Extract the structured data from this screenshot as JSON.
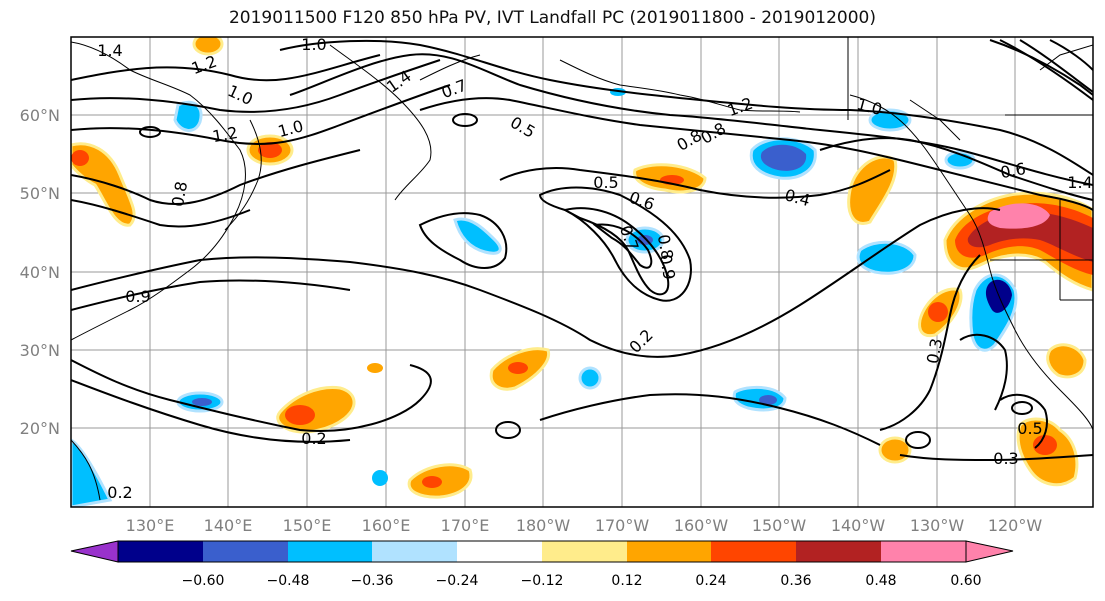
{
  "title": "2019011500 F120 850 hPa PV, IVT Landfall PC (2019011800 - 2019012000)",
  "lat_labels": [
    "60°N",
    "50°N",
    "40°N",
    "30°N",
    "20°N"
  ],
  "lon_labels": [
    "130°E",
    "140°E",
    "150°E",
    "160°E",
    "170°E",
    "180°W",
    "170°W",
    "160°W",
    "150°W",
    "140°W",
    "130°W",
    "120°W"
  ],
  "colorbar": {
    "colors": [
      "#9932CC",
      "#00008B",
      "#3A5FCD",
      "#00BFFF",
      "#B0E2FF",
      "#FFFFFF",
      "#FFEC8B",
      "#FFA500",
      "#FF4500",
      "#B22222",
      "#FF82AB"
    ],
    "tick_labels": [
      "−0.60",
      "−0.48",
      "−0.36",
      "−0.24",
      "−0.12",
      "0.12",
      "0.24",
      "0.36",
      "0.48",
      "0.60"
    ]
  },
  "contour_labels": [
    "1.4",
    "1.0",
    "1.2",
    "1.0",
    "1.2",
    "1.0",
    "1.4",
    "0.7",
    "0.5",
    "0.5",
    "0.6",
    "0.7",
    "0.8",
    "0.8",
    "0.9",
    "1.2",
    "0.8",
    "1.0",
    "0.4",
    "0.6",
    "1.4",
    "0.2",
    "0.3",
    "0.5",
    "0.3",
    "0.2",
    "0.8",
    "0.9",
    "0.2"
  ]
}
